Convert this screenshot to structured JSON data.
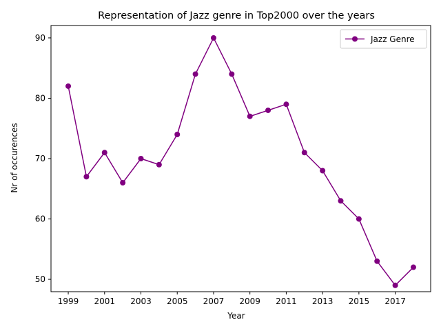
{
  "chart_data": {
    "type": "line",
    "title": "Representation of Jazz genre in Top2000 over the years",
    "xlabel": "Year",
    "ylabel": "Nr of occurences",
    "x": [
      1999,
      2000,
      2001,
      2002,
      2003,
      2004,
      2005,
      2006,
      2007,
      2008,
      2009,
      2010,
      2011,
      2012,
      2013,
      2014,
      2015,
      2016,
      2017,
      2018
    ],
    "series": [
      {
        "name": "Jazz Genre",
        "color": "#800080",
        "marker": "circle",
        "values": [
          82,
          67,
          71,
          66,
          70,
          69,
          74,
          84,
          90,
          84,
          77,
          78,
          79,
          71,
          68,
          63,
          60,
          53,
          49,
          52
        ]
      }
    ],
    "xticks": [
      "1999",
      "2001",
      "2003",
      "2005",
      "2007",
      "2009",
      "2011",
      "2013",
      "2015",
      "2017"
    ],
    "yticks": [
      "50",
      "60",
      "70",
      "80",
      "90"
    ],
    "xlim": [
      1998.05,
      2018.95
    ],
    "ylim": [
      47.95,
      92.05
    ],
    "grid": false,
    "legend_position": "top-right"
  }
}
